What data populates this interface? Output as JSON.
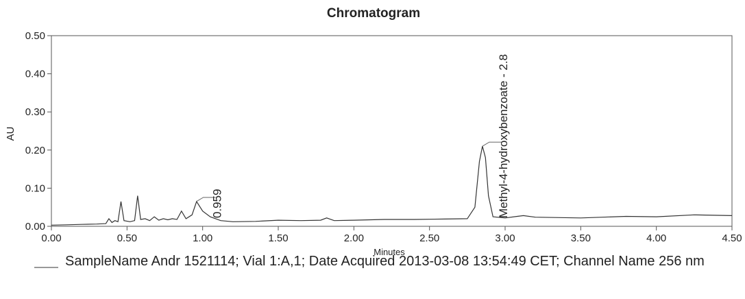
{
  "chart_data": {
    "type": "line",
    "title": "Chromatogram",
    "x_label": "Minutes",
    "y_label": "AU",
    "x": [
      0.0,
      0.1,
      0.2,
      0.3,
      0.36,
      0.38,
      0.4,
      0.42,
      0.44,
      0.46,
      0.48,
      0.52,
      0.55,
      0.57,
      0.59,
      0.62,
      0.65,
      0.68,
      0.71,
      0.74,
      0.77,
      0.8,
      0.83,
      0.86,
      0.89,
      0.93,
      0.96,
      1.0,
      1.05,
      1.12,
      1.2,
      1.35,
      1.5,
      1.65,
      1.78,
      1.82,
      1.87,
      2.0,
      2.2,
      2.4,
      2.6,
      2.75,
      2.8,
      2.83,
      2.85,
      2.87,
      2.89,
      2.92,
      3.0,
      3.08,
      3.12,
      3.2,
      3.5,
      3.8,
      4.0,
      4.25,
      4.5
    ],
    "series": [
      {
        "name": "SampleName Andr 1521114; Vial 1:A,1; Date Acquired 2013-03-08 13:54:49 CET; Channel Name 256 nm",
        "color": "#333333",
        "values": [
          0.003,
          0.004,
          0.005,
          0.006,
          0.007,
          0.02,
          0.01,
          0.015,
          0.012,
          0.065,
          0.015,
          0.012,
          0.015,
          0.08,
          0.018,
          0.02,
          0.015,
          0.025,
          0.016,
          0.02,
          0.017,
          0.02,
          0.018,
          0.04,
          0.02,
          0.03,
          0.065,
          0.04,
          0.025,
          0.015,
          0.012,
          0.013,
          0.016,
          0.015,
          0.016,
          0.022,
          0.015,
          0.016,
          0.018,
          0.018,
          0.019,
          0.02,
          0.05,
          0.17,
          0.21,
          0.18,
          0.08,
          0.025,
          0.022,
          0.026,
          0.028,
          0.024,
          0.022,
          0.026,
          0.025,
          0.03,
          0.028
        ]
      }
    ],
    "annotations": [
      {
        "text": "0.959",
        "x": 0.959,
        "y": 0.065
      },
      {
        "text": "Methyl-4-hydroxybenzoate - 2.8",
        "x": 2.85,
        "y": 0.21
      }
    ],
    "xlim": [
      0,
      4.5
    ],
    "ylim": [
      0,
      0.5
    ],
    "xticks": [
      {
        "value": 0,
        "label": "0.00"
      },
      {
        "value": 0.5,
        "label": "0.50"
      },
      {
        "value": 1,
        "label": "1.00"
      },
      {
        "value": 1.5,
        "label": "1.50"
      },
      {
        "value": 2,
        "label": "2.00"
      },
      {
        "value": 2.5,
        "label": "2.50"
      },
      {
        "value": 3,
        "label": "3.00"
      },
      {
        "value": 3.5,
        "label": "3.50"
      },
      {
        "value": 4,
        "label": "4.00"
      },
      {
        "value": 4.5,
        "label": "4.50"
      }
    ],
    "yticks": [
      {
        "value": 0,
        "label": "0.00"
      },
      {
        "value": 0.1,
        "label": "0.10"
      },
      {
        "value": 0.2,
        "label": "0.20"
      },
      {
        "value": 0.3,
        "label": "0.30"
      },
      {
        "value": 0.4,
        "label": "0.40"
      },
      {
        "value": 0.5,
        "label": "0.50"
      }
    ],
    "grid": false
  }
}
